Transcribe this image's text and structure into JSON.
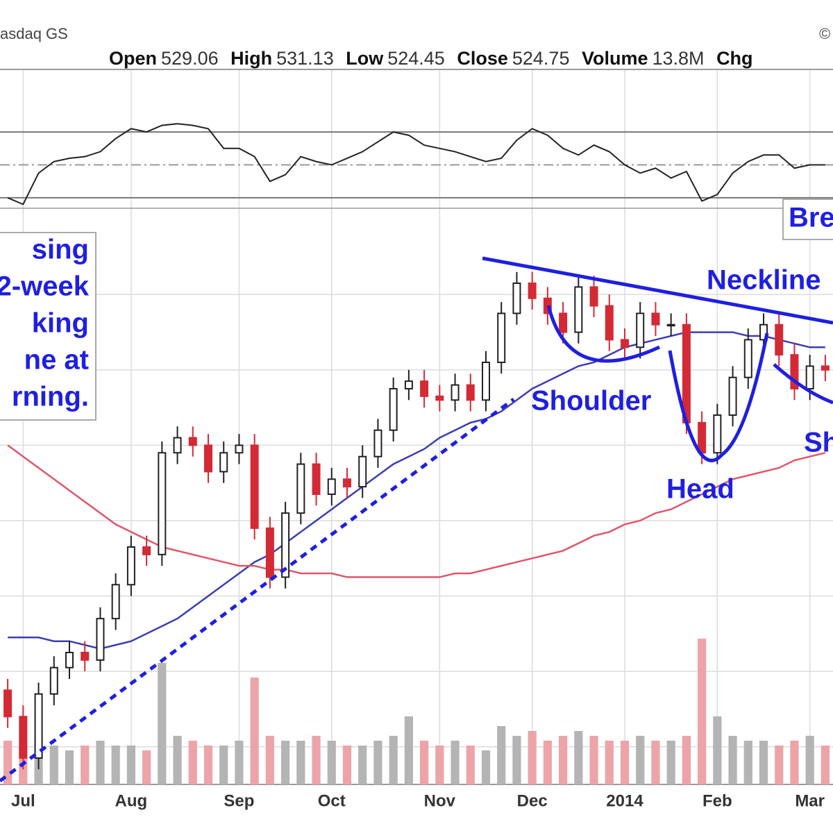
{
  "chart_data": {
    "type": "candlestick",
    "exchange": "asdaq GS",
    "source_mark": "©",
    "quote": [
      {
        "label": "Open",
        "value": "529.06"
      },
      {
        "label": "High",
        "value": "531.13"
      },
      {
        "label": "Low",
        "value": "524.45"
      },
      {
        "label": "Close",
        "value": "524.75"
      },
      {
        "label": "Volume",
        "value": "13.8M"
      }
    ],
    "change_label": "Chg",
    "categories": [
      null,
      "Jul",
      null,
      null,
      null,
      null,
      null,
      null,
      "Aug",
      null,
      null,
      null,
      null,
      null,
      null,
      "Sep",
      null,
      null,
      null,
      null,
      null,
      "Oct",
      null,
      null,
      null,
      null,
      null,
      null,
      "Nov",
      null,
      null,
      null,
      null,
      null,
      "Dec",
      null,
      null,
      null,
      null,
      null,
      "2014",
      null,
      null,
      null,
      null,
      null,
      "Feb",
      null,
      null,
      null,
      null,
      null,
      "Mar",
      null
    ],
    "open": [
      455,
      448,
      437,
      454,
      461,
      465,
      463,
      474,
      483,
      493,
      491,
      518,
      522,
      520,
      513,
      518,
      520,
      498,
      485,
      502,
      515,
      507,
      511,
      509,
      517,
      524,
      535,
      537,
      533,
      532,
      536,
      532,
      542,
      555,
      563,
      559,
      555,
      550,
      562,
      557,
      548,
      546,
      555,
      552,
      552,
      526,
      518,
      528,
      538,
      548,
      552,
      544,
      535,
      541
    ],
    "high": [
      458,
      451,
      457,
      464,
      468,
      468,
      477,
      486,
      496,
      496,
      521,
      525,
      525,
      523,
      521,
      523,
      523,
      501,
      505,
      518,
      518,
      514,
      514,
      520,
      527,
      538,
      540,
      540,
      536,
      539,
      539,
      545,
      558,
      566,
      566,
      562,
      558,
      565,
      565,
      560,
      551,
      558,
      558,
      555,
      555,
      529,
      531,
      541,
      551,
      555,
      555,
      547,
      544,
      544
    ],
    "low": [
      445,
      434,
      434,
      451,
      458,
      460,
      460,
      471,
      480,
      488,
      488,
      515,
      517,
      510,
      510,
      515,
      495,
      482,
      482,
      499,
      504,
      504,
      506,
      506,
      514,
      521,
      532,
      530,
      529,
      529,
      529,
      529,
      539,
      552,
      556,
      552,
      547,
      547,
      554,
      545,
      543,
      543,
      549,
      549,
      523,
      515,
      515,
      525,
      535,
      545,
      541,
      532,
      532,
      537
    ],
    "close": [
      448,
      437,
      454,
      461,
      465,
      463,
      474,
      483,
      493,
      491,
      518,
      522,
      520,
      513,
      518,
      520,
      498,
      485,
      502,
      515,
      507,
      511,
      509,
      517,
      524,
      535,
      537,
      533,
      532,
      536,
      532,
      542,
      555,
      563,
      559,
      555,
      550,
      562,
      557,
      548,
      546,
      555,
      552,
      552,
      526,
      518,
      528,
      538,
      548,
      552,
      544,
      535,
      541,
      540
    ],
    "volume": [
      9,
      8,
      10,
      8,
      7,
      8,
      9,
      8,
      8,
      7,
      25,
      10,
      9,
      8,
      8,
      9,
      22,
      10,
      9,
      9,
      10,
      9,
      8,
      8,
      9,
      10,
      14,
      9,
      8,
      9,
      8,
      7,
      12,
      10,
      11,
      9,
      10,
      11,
      10,
      9,
      9,
      10,
      9,
      9,
      10,
      30,
      14,
      10,
      9,
      9,
      8,
      9,
      10,
      8
    ],
    "up_color": "#222222",
    "down_color": "#d42a36",
    "up_volume_color": "#b4b4b4",
    "down_volume_color": "#eca4a8",
    "moving_averages": [
      {
        "color": "#3c3cb4",
        "values": [
          469,
          469,
          469,
          468,
          468,
          467,
          466,
          467,
          468,
          470,
          472,
          474,
          477,
          480,
          483,
          486,
          489,
          491,
          494,
          497,
          500,
          503,
          506,
          509,
          512,
          515,
          517,
          519,
          522,
          524,
          526,
          527,
          529,
          532,
          535,
          537,
          539,
          541,
          542,
          544,
          546,
          547,
          548,
          549,
          550,
          550,
          550,
          550,
          549,
          549,
          548,
          547,
          546,
          546
        ]
      },
      {
        "color": "#e0566a",
        "values": [
          520,
          517,
          514,
          511,
          508,
          505,
          502,
          499,
          497,
          495,
          493,
          492,
          491,
          490,
          489,
          488,
          488,
          487,
          487,
          486,
          486,
          486,
          485,
          485,
          485,
          485,
          485,
          485,
          485,
          486,
          486,
          487,
          488,
          489,
          490,
          491,
          492,
          494,
          496,
          497,
          499,
          500,
          502,
          503,
          505,
          507,
          509,
          511,
          512,
          513,
          514,
          516,
          517,
          518
        ]
      }
    ],
    "ylim": [
      430,
      570
    ],
    "yticks": [
      440,
      460,
      480,
      500,
      520,
      540,
      560
    ],
    "volume_lim": [
      0,
      30
    ],
    "grid": true,
    "rsi": {
      "color": "#222222",
      "ylim": [
        0,
        100
      ],
      "levels": [
        30,
        50,
        70
      ],
      "values": [
        30,
        26,
        45,
        52,
        54,
        55,
        58,
        66,
        72,
        70,
        74,
        75,
        74,
        72,
        60,
        60,
        55,
        40,
        44,
        55,
        52,
        50,
        54,
        58,
        64,
        70,
        68,
        62,
        60,
        58,
        55,
        52,
        54,
        65,
        72,
        68,
        60,
        56,
        62,
        58,
        50,
        45,
        48,
        42,
        46,
        28,
        32,
        45,
        52,
        56,
        56,
        48,
        50,
        50
      ]
    },
    "annotations": {
      "callout": [
        "sing",
        "2-week",
        "king",
        "ne at",
        "rning."
      ],
      "breakout": "Bre",
      "neckline": "Neckline",
      "shoulder_left": "Shoulder",
      "head": "Head",
      "shoulder_right": "Sh"
    }
  }
}
